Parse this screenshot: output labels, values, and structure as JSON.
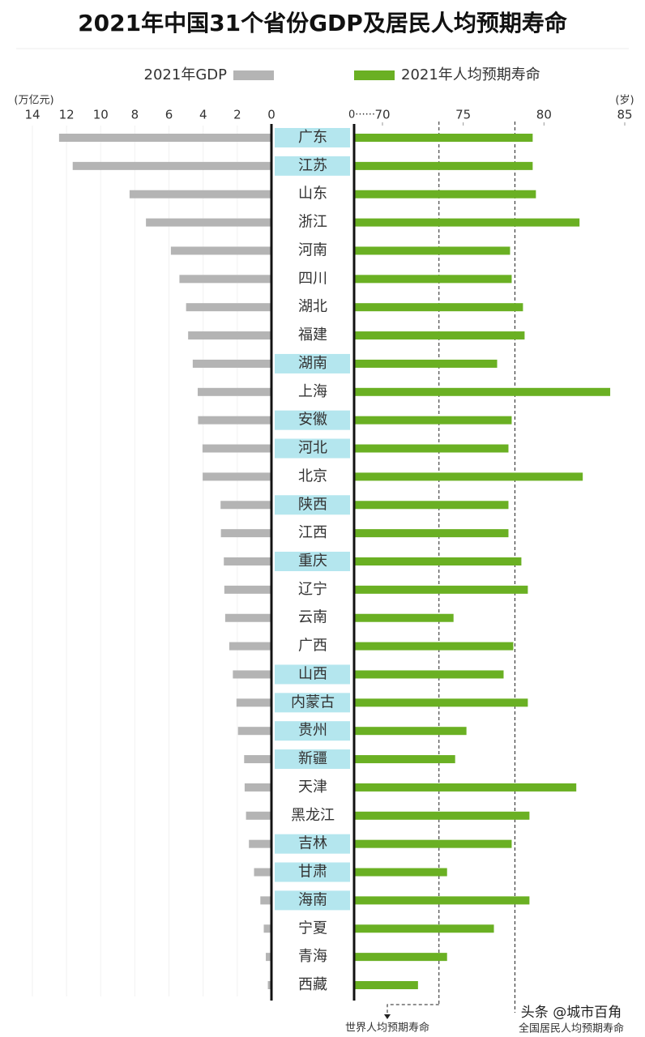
{
  "chart_data": {
    "type": "butterfly-bar",
    "title": "2021年中国31个省份GDP及居民人均预期寿命",
    "categories": [
      "广东",
      "江苏",
      "山东",
      "浙江",
      "河南",
      "四川",
      "湖北",
      "福建",
      "湖南",
      "上海",
      "安徽",
      "河北",
      "北京",
      "陕西",
      "江西",
      "重庆",
      "辽宁",
      "云南",
      "广西",
      "山西",
      "内蒙古",
      "贵州",
      "新疆",
      "天津",
      "黑龙江",
      "吉林",
      "甘肃",
      "海南",
      "宁夏",
      "青海",
      "西藏"
    ],
    "highlight": {
      "color": "#b4e6ee",
      "categories": [
        "广东",
        "江苏",
        "湖南",
        "安徽",
        "河北",
        "陕西",
        "重庆",
        "山西",
        "内蒙古",
        "贵州",
        "新疆",
        "吉林",
        "甘肃",
        "海南"
      ]
    },
    "series": [
      {
        "name": "2021年GDP",
        "color": "#b4b4b4",
        "unit": "(万亿元)",
        "xlim": [
          0,
          14
        ],
        "xticks": [
          0,
          2,
          4,
          6,
          8,
          10,
          12,
          14
        ],
        "values": [
          12.44,
          11.64,
          8.31,
          7.35,
          5.89,
          5.39,
          5.0,
          4.88,
          4.61,
          4.32,
          4.3,
          4.04,
          4.03,
          2.98,
          2.96,
          2.79,
          2.76,
          2.71,
          2.47,
          2.26,
          2.05,
          1.96,
          1.6,
          1.57,
          1.49,
          1.32,
          1.02,
          0.65,
          0.45,
          0.33,
          0.21
        ]
      },
      {
        "name": "2021年人均预期寿命",
        "color": "#6ab023",
        "unit": "(岁)",
        "axis_break": "0······",
        "xlim": [
          70,
          85
        ],
        "xticks": [
          70,
          75,
          80,
          85
        ],
        "values": [
          79.3,
          79.3,
          79.5,
          82.2,
          77.9,
          78.0,
          78.7,
          78.8,
          77.1,
          84.1,
          78.0,
          77.8,
          82.4,
          77.8,
          77.8,
          78.6,
          79.0,
          74.4,
          78.1,
          77.5,
          79.0,
          75.2,
          74.5,
          82.0,
          79.1,
          78.0,
          74.0,
          79.1,
          76.9,
          74.0,
          72.2
        ]
      }
    ],
    "reference_lines": [
      {
        "label": "世界人均预期寿命",
        "value": 73.5
      },
      {
        "label": "全国居民人均预期寿命",
        "value": 78.2
      }
    ],
    "watermark": "头条 @城市百角"
  }
}
